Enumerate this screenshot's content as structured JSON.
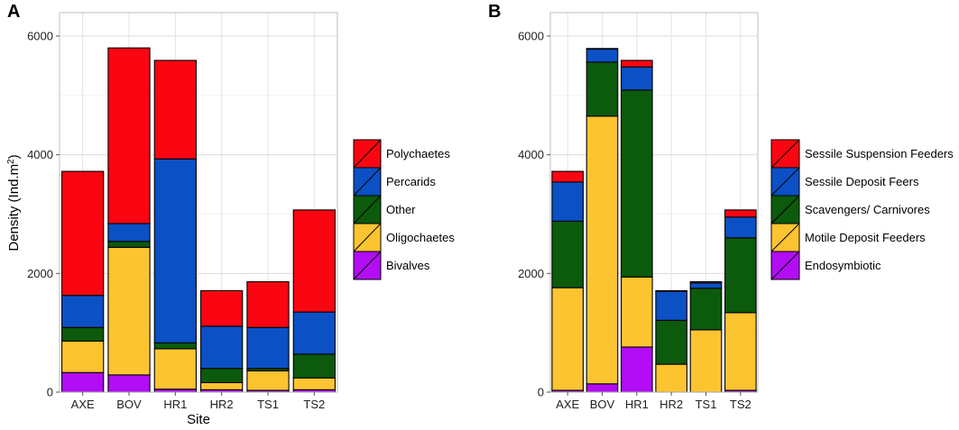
{
  "figure": {
    "panel_labels": [
      "A",
      "B"
    ]
  },
  "chart_data": [
    {
      "type": "bar",
      "stacked": true,
      "panel": "A",
      "title": "",
      "xlabel": "Site",
      "ylabel": "Density  (Ind.m",
      "ylabel_sup": "2",
      "ylabel_close": ")",
      "categories": [
        "AXE",
        "BOV",
        "HR1",
        "HR2",
        "TS1",
        "TS2"
      ],
      "ylim": [
        0,
        6000
      ],
      "yticks": [
        0,
        2000,
        4000,
        6000
      ],
      "series": [
        {
          "name": "Bivalves",
          "color": "#b20df5",
          "values": [
            330,
            290,
            50,
            40,
            30,
            40
          ]
        },
        {
          "name": "Oligochaetes",
          "color": "#fdc431",
          "values": [
            530,
            2150,
            680,
            120,
            330,
            200
          ]
        },
        {
          "name": "Other",
          "color": "#0c5a0c",
          "values": [
            230,
            100,
            100,
            240,
            40,
            400
          ]
        },
        {
          "name": "Percarids",
          "color": "#0b50c4",
          "values": [
            540,
            300,
            3100,
            710,
            690,
            710
          ]
        },
        {
          "name": "Polychaetes",
          "color": "#fa0511",
          "values": [
            2090,
            2960,
            1660,
            600,
            770,
            1720
          ]
        }
      ],
      "legend_order": [
        "Polychaetes",
        "Percarids",
        "Other",
        "Oligochaetes",
        "Bivalves"
      ],
      "legend_position": "right",
      "grid": true
    },
    {
      "type": "bar",
      "stacked": true,
      "panel": "B",
      "title": "",
      "xlabel": "",
      "ylabel": "",
      "categories": [
        "AXE",
        "BOV",
        "HR1",
        "HR2",
        "TS1",
        "TS2"
      ],
      "ylim": [
        0,
        6000
      ],
      "yticks": [
        0,
        2000,
        4000,
        6000
      ],
      "series": [
        {
          "name": "Endosymbiotic",
          "color": "#b20df5",
          "values": [
            30,
            140,
            760,
            0,
            0,
            30
          ]
        },
        {
          "name": "Motile Deposit Feeders",
          "color": "#fdc431",
          "values": [
            1730,
            4510,
            1180,
            470,
            1050,
            1310
          ]
        },
        {
          "name": "Scavengers/ Carnivores",
          "color": "#0c5a0c",
          "values": [
            1120,
            910,
            3150,
            740,
            700,
            1260
          ]
        },
        {
          "name": "Sessile Deposit Feers",
          "color": "#0b50c4",
          "values": [
            660,
            220,
            390,
            490,
            90,
            350
          ]
        },
        {
          "name": "Sessile Suspension Feeders",
          "color": "#fa0511",
          "values": [
            180,
            10,
            110,
            10,
            20,
            120
          ]
        }
      ],
      "legend_order": [
        "Sessile Suspension Feeders",
        "Sessile Deposit Feers",
        "Scavengers/ Carnivores",
        "Motile Deposit Feeders",
        "Endosymbiotic"
      ],
      "legend_position": "right",
      "grid": true
    }
  ]
}
